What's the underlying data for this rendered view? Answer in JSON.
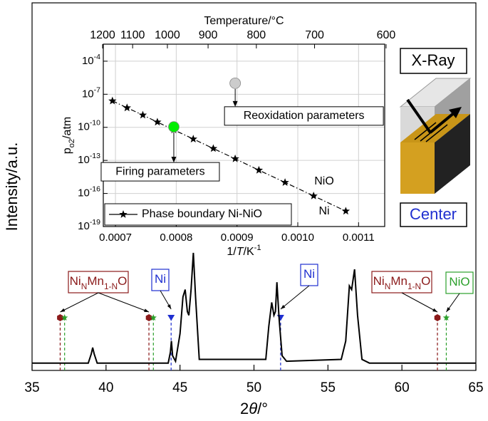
{
  "chart_data": [
    {
      "type": "line",
      "x": [
        35,
        38.8,
        39.0,
        39.1,
        39.2,
        39.4,
        44.2,
        44.35,
        44.42,
        44.5,
        44.7,
        45.0,
        45.2,
        45.35,
        45.5,
        45.6,
        45.75,
        45.9,
        46.05,
        46.3,
        50.8,
        51.0,
        51.2,
        51.35,
        51.45,
        51.55,
        51.7,
        51.9,
        52.2,
        55.9,
        56.2,
        56.45,
        56.6,
        56.8,
        57.0,
        57.3,
        57.8,
        65
      ],
      "values": [
        2,
        2,
        4.5,
        6.2,
        4.5,
        2,
        2,
        5,
        8,
        4,
        2.5,
        10,
        20,
        22,
        16,
        15,
        22,
        32,
        20,
        3,
        3,
        12,
        18.5,
        15,
        16,
        24,
        14,
        4,
        2.5,
        3,
        8,
        23,
        22,
        27.5,
        15,
        3,
        2,
        2
      ],
      "color": "#000000",
      "xlim": [
        35,
        65
      ],
      "xticks": [
        35,
        40,
        45,
        50,
        55,
        60,
        65
      ],
      "ylim": [
        0,
        100
      ],
      "xlabel": [
        {
          "text": "2"
        },
        {
          "text": "θ",
          "style": "italic"
        },
        {
          "text": "/°"
        }
      ],
      "ylabel": "Intensity/a.u.",
      "reference_peaks": [
        {
          "color": "#8b1a1a",
          "marker": "hexagon",
          "positions": [
            36.9,
            42.9,
            62.4
          ]
        },
        {
          "color": "#2ca02c",
          "marker": "star",
          "positions": [
            37.2,
            43.2,
            63.0
          ]
        },
        {
          "color": "#1f2fd0",
          "marker": "triangle",
          "positions": [
            44.4,
            51.8
          ]
        }
      ],
      "annotations": [
        {
          "label": [
            {
              "text": "Ni"
            },
            {
              "text": "N",
              "style": "sub"
            },
            {
              "text": "Mn"
            },
            {
              "text": "1-N",
              "style": "sub"
            },
            {
              "text": "O"
            }
          ],
          "color": "#8b1a1a"
        },
        {
          "label": [
            {
              "text": "Ni"
            }
          ],
          "color": "#1f2fd0"
        },
        {
          "label": [
            {
              "text": "Ni"
            }
          ],
          "color": "#1f2fd0"
        },
        {
          "label": [
            {
              "text": "Ni"
            },
            {
              "text": "N",
              "style": "sub"
            },
            {
              "text": "Mn"
            },
            {
              "text": "1-N",
              "style": "sub"
            },
            {
              "text": "O"
            }
          ],
          "color": "#8b1a1a"
        },
        {
          "label": [
            {
              "text": "NiO"
            }
          ],
          "color": "#2ca02c"
        }
      ]
    },
    {
      "type": "line",
      "series": [
        {
          "name": "Phase boundary Ni-NiO",
          "color": "#000000",
          "marker": "star",
          "x": [
            0.000695,
            0.000719,
            0.000745,
            0.000769,
            0.000796,
            0.000828,
            0.000861,
            0.000897,
            0.000936,
            0.000979,
            0.001026,
            0.001079
          ],
          "values": [
            2.5e-08,
            5.9e-09,
            1.3e-09,
            3e-10,
            5.9e-11,
            8.7e-12,
            1.2e-12,
            1.4e-13,
            1.3e-14,
            1e-15,
            6e-17,
            2.5e-18
          ]
        }
      ],
      "xlim": [
        0.00068,
        0.001143
      ],
      "xticks": [
        0.0007,
        0.0008,
        0.0009,
        {
          "value": 0.001,
          "label": "0.0010"
        },
        0.0011
      ],
      "x2label": "Temperature/°C",
      "x2ticks": [
        1200,
        1100,
        1000,
        900,
        800,
        700,
        600
      ],
      "ylog": true,
      "ylim": [
        1e-19,
        0.0035
      ],
      "yticks": [
        {
          "value": 0.0001,
          "label": "10",
          "exp": "-4"
        },
        {
          "value": 1e-07,
          "label": "10",
          "exp": "-7"
        },
        {
          "value": 1e-10,
          "label": "10",
          "exp": "-10"
        },
        {
          "value": 1e-13,
          "label": "10",
          "exp": "-13"
        },
        {
          "value": 1e-16,
          "label": "10",
          "exp": "-16"
        },
        {
          "value": 1e-19,
          "label": "10",
          "exp": "-19"
        }
      ],
      "xlabel": [
        {
          "text": "1/"
        },
        {
          "text": "T",
          "style": "italic"
        },
        {
          "text": "/K"
        },
        {
          "text": "-1",
          "style": "sup"
        }
      ],
      "ylabel": [
        {
          "text": "p"
        },
        {
          "text": "o2",
          "style": "sub"
        },
        {
          "text": "/atm"
        }
      ],
      "grid": true,
      "legend": "lower left",
      "points": [
        {
          "label": "Firing parameters",
          "x": 0.000796,
          "y": 1.1e-10,
          "color": "#00ee00"
        },
        {
          "label": "Reoxidation parameters",
          "x": 0.000897,
          "y": 1e-06,
          "color": "#cccccc"
        }
      ],
      "region_labels": [
        "NiO",
        "Ni"
      ]
    }
  ],
  "illustration": {
    "top_label": "X-Ray",
    "bottom_label": "Center"
  }
}
